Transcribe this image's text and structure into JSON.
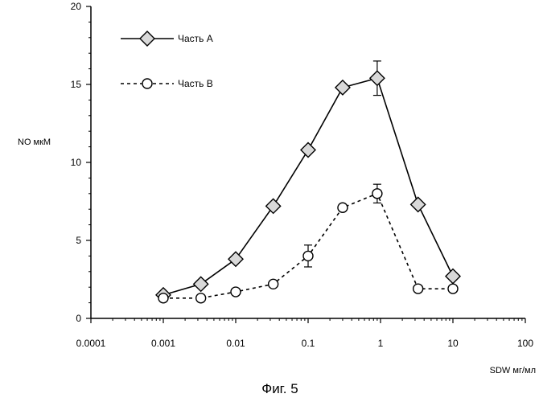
{
  "chart_data": {
    "type": "line",
    "xscale": "log",
    "xlim": [
      0.0001,
      100
    ],
    "ylim": [
      0,
      20
    ],
    "xticks": [
      "0.0001",
      "0.001",
      "0.01",
      "0.1",
      "1",
      "10",
      "100"
    ],
    "yticks": [
      "0",
      "5",
      "10",
      "15",
      "20"
    ],
    "xlabel": "SDW мг/мл",
    "ylabel": "NO мкМ",
    "caption": "Фиг. 5",
    "legend_position": "top-left",
    "series": [
      {
        "name": "Часть А",
        "marker": "diamond",
        "line": "solid",
        "points": [
          {
            "x": 0.001,
            "y": 1.5
          },
          {
            "x": 0.0033,
            "y": 2.2
          },
          {
            "x": 0.01,
            "y": 3.8
          },
          {
            "x": 0.033,
            "y": 7.2
          },
          {
            "x": 0.1,
            "y": 10.8
          },
          {
            "x": 0.3,
            "y": 14.8
          },
          {
            "x": 0.9,
            "y": 15.4,
            "err": 1.1
          },
          {
            "x": 3.3,
            "y": 7.3
          },
          {
            "x": 10,
            "y": 2.7
          }
        ]
      },
      {
        "name": "Часть В",
        "marker": "circle",
        "line": "dashed",
        "points": [
          {
            "x": 0.001,
            "y": 1.3
          },
          {
            "x": 0.0033,
            "y": 1.3
          },
          {
            "x": 0.01,
            "y": 1.7
          },
          {
            "x": 0.033,
            "y": 2.2
          },
          {
            "x": 0.1,
            "y": 4.0,
            "err": 0.7
          },
          {
            "x": 0.3,
            "y": 7.1
          },
          {
            "x": 0.9,
            "y": 8.0,
            "err": 0.6
          },
          {
            "x": 3.3,
            "y": 1.9
          },
          {
            "x": 10,
            "y": 1.9
          }
        ]
      }
    ]
  }
}
